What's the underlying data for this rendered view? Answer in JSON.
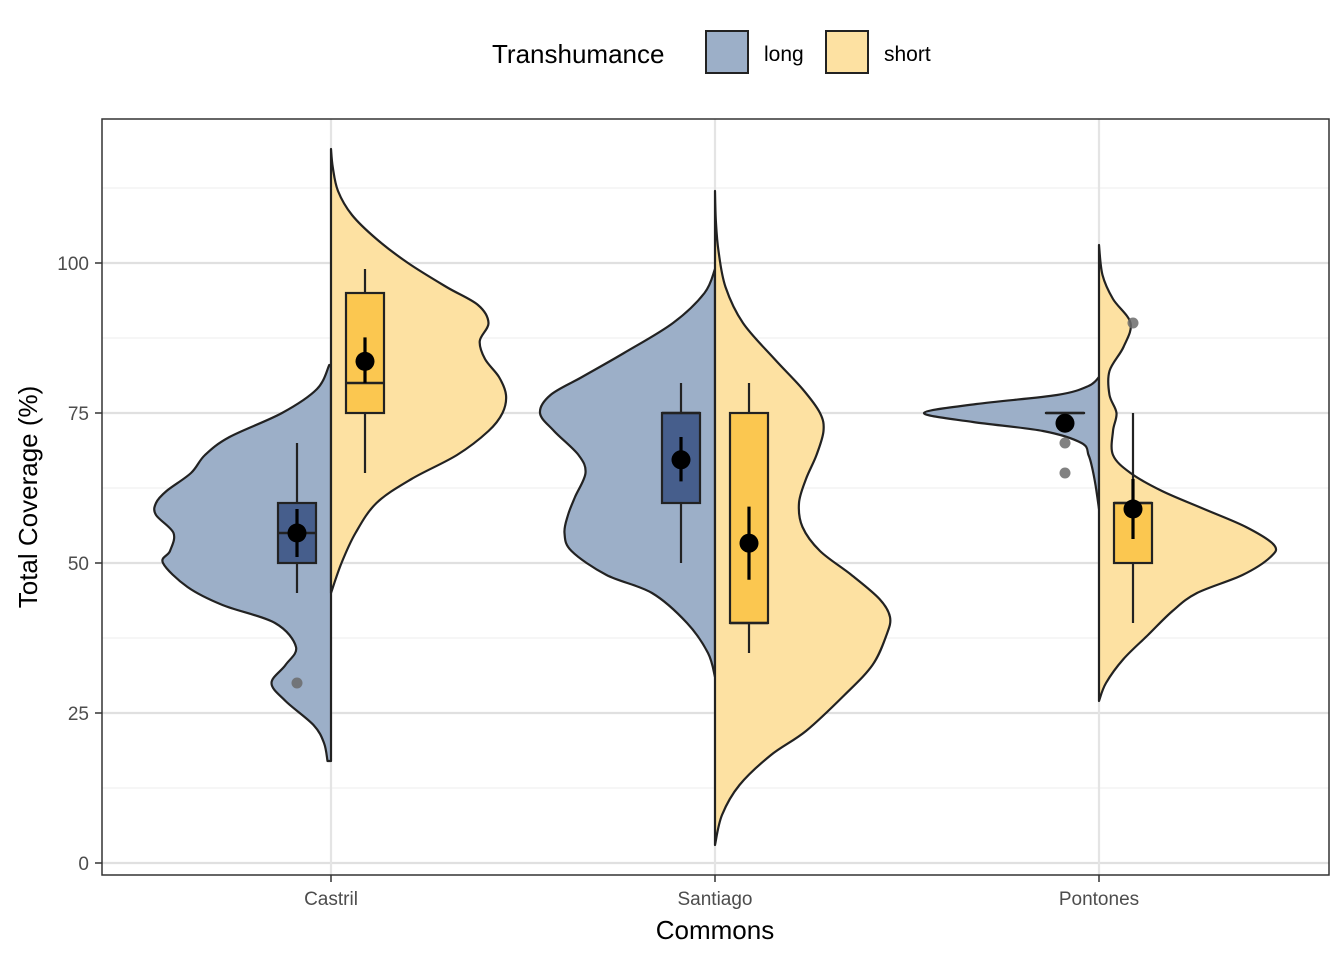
{
  "chart_data": {
    "type": "violin",
    "subtype": "split-violin-with-boxplot-and-mean-ci",
    "xlabel": "Commons",
    "ylabel": "Total Coverage (%)",
    "ylim": [
      -2,
      124
    ],
    "y_ticks": [
      0,
      25,
      50,
      75,
      100
    ],
    "categories": [
      "Castril",
      "Santiago",
      "Pontones"
    ],
    "legend": {
      "title": "Transhumance",
      "position": "top",
      "entries": [
        "long",
        "short"
      ]
    },
    "grid": true,
    "colors": {
      "long_violin": "#9cafc8",
      "long_box": "#465e8c",
      "short_violin": "#fde1a2",
      "short_box": "#fbc750",
      "outline": "#222222",
      "mean": "#000000",
      "outlier": "#6b6b6b"
    },
    "series": [
      {
        "name": "long",
        "side": "left",
        "groups": [
          {
            "category": "Castril",
            "violin_range": [
              17,
              83
            ],
            "density": [
              [
                17,
                0.02
              ],
              [
                20,
                0.04
              ],
              [
                23,
                0.1
              ],
              [
                27,
                0.26
              ],
              [
                30,
                0.34
              ],
              [
                33,
                0.26
              ],
              [
                36,
                0.2
              ],
              [
                40,
                0.32
              ],
              [
                43,
                0.62
              ],
              [
                46,
                0.82
              ],
              [
                50,
                0.96
              ],
              [
                52,
                0.92
              ],
              [
                55,
                0.9
              ],
              [
                58,
                1.0
              ],
              [
                60,
                1.0
              ],
              [
                62,
                0.94
              ],
              [
                65,
                0.8
              ],
              [
                68,
                0.72
              ],
              [
                71,
                0.58
              ],
              [
                75,
                0.28
              ],
              [
                79,
                0.08
              ],
              [
                83,
                0.01
              ]
            ],
            "box": {
              "q1": 50,
              "median": 55,
              "q3": 60,
              "lower_whisker": 45,
              "upper_whisker": 70
            },
            "mean": 55,
            "ci": [
              51,
              59
            ],
            "outliers": [
              30
            ]
          },
          {
            "category": "Santiago",
            "violin_range": [
              31,
              99
            ],
            "density": [
              [
                31,
                0.0
              ],
              [
                35,
                0.04
              ],
              [
                40,
                0.16
              ],
              [
                45,
                0.36
              ],
              [
                48,
                0.62
              ],
              [
                52,
                0.82
              ],
              [
                55,
                0.86
              ],
              [
                58,
                0.84
              ],
              [
                61,
                0.8
              ],
              [
                65,
                0.74
              ],
              [
                68,
                0.78
              ],
              [
                72,
                0.92
              ],
              [
                75,
                1.0
              ],
              [
                78,
                0.94
              ],
              [
                81,
                0.76
              ],
              [
                85,
                0.52
              ],
              [
                90,
                0.24
              ],
              [
                95,
                0.06
              ],
              [
                99,
                0.0
              ]
            ],
            "box": {
              "q1": 60,
              "median": 75,
              "q3": 75,
              "lower_whisker": 50,
              "upper_whisker": 80
            },
            "mean": 67.2,
            "ci": [
              63.6,
              71
            ],
            "outliers": []
          },
          {
            "category": "Pontones",
            "violin_range": [
              59,
              81
            ],
            "density": [
              [
                59,
                0.0
              ],
              [
                63,
                0.02
              ],
              [
                66,
                0.04
              ],
              [
                68,
                0.06
              ],
              [
                70,
                0.1
              ],
              [
                72,
                0.32
              ],
              [
                73.5,
                0.72
              ],
              [
                75,
                1.0
              ],
              [
                76.5,
                0.7
              ],
              [
                78,
                0.24
              ],
              [
                79.5,
                0.06
              ],
              [
                81,
                0.0
              ]
            ],
            "box": {
              "q1": 75,
              "median": 75,
              "q3": 75,
              "lower_whisker": 75,
              "upper_whisker": 75
            },
            "mean": 73.3,
            "ci": [
              72.5,
              74.3
            ],
            "outliers": [
              70,
              65
            ]
          }
        ]
      },
      {
        "name": "short",
        "side": "right",
        "groups": [
          {
            "category": "Castril",
            "violin_range": [
              45,
              119
            ],
            "density": [
              [
                45,
                0.0
              ],
              [
                50,
                0.06
              ],
              [
                55,
                0.14
              ],
              [
                60,
                0.26
              ],
              [
                64,
                0.46
              ],
              [
                68,
                0.72
              ],
              [
                72,
                0.9
              ],
              [
                75,
                0.98
              ],
              [
                78,
                1.0
              ],
              [
                81,
                0.96
              ],
              [
                84,
                0.88
              ],
              [
                87,
                0.85
              ],
              [
                90,
                0.9
              ],
              [
                93,
                0.84
              ],
              [
                96,
                0.66
              ],
              [
                100,
                0.44
              ],
              [
                104,
                0.26
              ],
              [
                108,
                0.12
              ],
              [
                112,
                0.04
              ],
              [
                116,
                0.01
              ],
              [
                119,
                0.0
              ]
            ],
            "box": {
              "q1": 75,
              "median": 80,
              "q3": 95,
              "lower_whisker": 65,
              "upper_whisker": 99
            },
            "mean": 83.6,
            "ci": [
              80,
              87.6
            ],
            "outliers": []
          },
          {
            "category": "Santiago",
            "violin_range": [
              3,
              112
            ],
            "density": [
              [
                3,
                0.0
              ],
              [
                8,
                0.04
              ],
              [
                13,
                0.14
              ],
              [
                18,
                0.32
              ],
              [
                22,
                0.52
              ],
              [
                28,
                0.74
              ],
              [
                33,
                0.9
              ],
              [
                38,
                0.98
              ],
              [
                41,
                1.0
              ],
              [
                44,
                0.94
              ],
              [
                48,
                0.78
              ],
              [
                52,
                0.6
              ],
              [
                56,
                0.5
              ],
              [
                60,
                0.48
              ],
              [
                64,
                0.52
              ],
              [
                68,
                0.58
              ],
              [
                72,
                0.62
              ],
              [
                75,
                0.6
              ],
              [
                79,
                0.5
              ],
              [
                84,
                0.34
              ],
              [
                90,
                0.16
              ],
              [
                96,
                0.06
              ],
              [
                102,
                0.02
              ],
              [
                107,
                0.005
              ],
              [
                112,
                0.0
              ]
            ],
            "box": {
              "q1": 40,
              "median": 40,
              "q3": 75,
              "lower_whisker": 35,
              "upper_whisker": 80
            },
            "mean": 53.3,
            "ci": [
              47.2,
              59.4
            ],
            "outliers": []
          },
          {
            "category": "Pontones",
            "violin_range": [
              27,
              103
            ],
            "density": [
              [
                27,
                0.0
              ],
              [
                30,
                0.04
              ],
              [
                34,
                0.14
              ],
              [
                38,
                0.28
              ],
              [
                42,
                0.42
              ],
              [
                45,
                0.56
              ],
              [
                48,
                0.82
              ],
              [
                51,
                0.98
              ],
              [
                53,
                1.0
              ],
              [
                56,
                0.84
              ],
              [
                59,
                0.6
              ],
              [
                62,
                0.36
              ],
              [
                65,
                0.18
              ],
              [
                68,
                0.08
              ],
              [
                72,
                0.08
              ],
              [
                75,
                0.1
              ],
              [
                78,
                0.06
              ],
              [
                82,
                0.06
              ],
              [
                86,
                0.14
              ],
              [
                90,
                0.18
              ],
              [
                94,
                0.08
              ],
              [
                98,
                0.02
              ],
              [
                103,
                0.0
              ]
            ],
            "box": {
              "q1": 50,
              "median": 60,
              "q3": 60,
              "lower_whisker": 40,
              "upper_whisker": 75
            },
            "mean": 59,
            "ci": [
              54,
              64
            ],
            "outliers": [
              90
            ]
          }
        ]
      }
    ]
  }
}
